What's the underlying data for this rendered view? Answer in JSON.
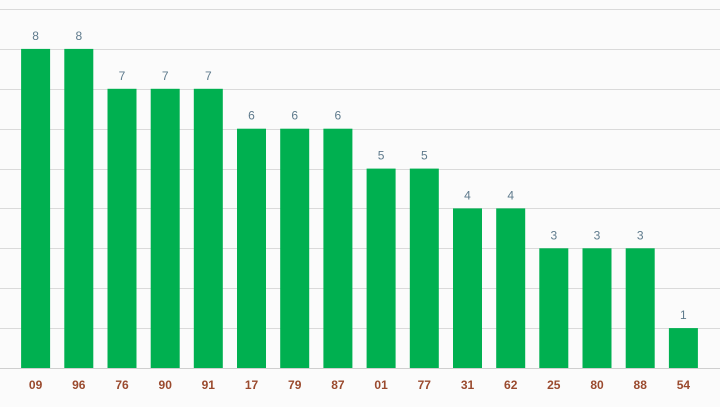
{
  "chart_data": {
    "type": "bar",
    "categories": [
      "09",
      "96",
      "76",
      "90",
      "91",
      "17",
      "79",
      "87",
      "01",
      "77",
      "31",
      "62",
      "25",
      "80",
      "88",
      "54"
    ],
    "values": [
      8,
      8,
      7,
      7,
      7,
      6,
      6,
      6,
      5,
      5,
      4,
      4,
      3,
      3,
      3,
      1
    ],
    "title": "",
    "xlabel": "",
    "ylabel": "",
    "ylim": [
      0,
      9
    ],
    "grid": true,
    "data_labels": true,
    "colors": {
      "bar": "#00b050",
      "value_label": "#5e7a8c",
      "tick_label": "#9a4a2e",
      "grid": "#dadada",
      "background": "#fbfbfb"
    }
  }
}
